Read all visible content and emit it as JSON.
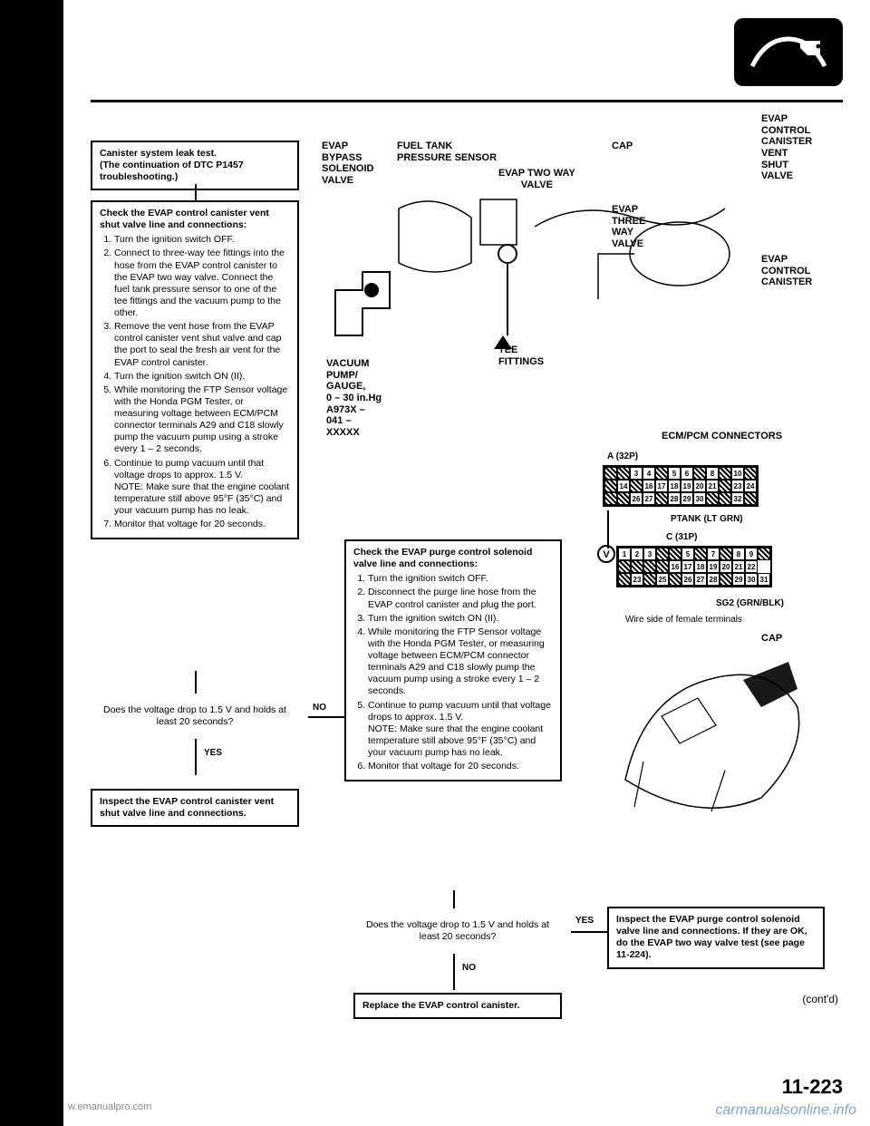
{
  "page": {
    "number": "11-223",
    "contd": "(cont'd)",
    "watermark_left": "w.emanualpro.com",
    "watermark_right": "carmanualsonline.info"
  },
  "boxes": {
    "start": {
      "lines": [
        "Canister system leak test.",
        "(The continuation of DTC P1457 troubleshooting.)"
      ]
    },
    "check_vent": {
      "head": "Check the EVAP control canister vent shut valve line and connections:",
      "items": [
        "Turn the ignition switch OFF.",
        "Connect to three-way tee fittings into the hose from the EVAP control canister to the EVAP two way valve. Connect the fuel tank pressure sensor to one of the tee fittings and the vacuum pump to the other.",
        "Remove the vent hose from the EVAP control canister vent shut valve and cap the port to seal the fresh air vent for the EVAP control canister.",
        "Turn the ignition switch ON (II).",
        "While monitoring the FTP Sensor voltage with the Honda PGM Tester, or measuring voltage between ECM/PCM connector terminals A29 and C18 slowly pump the vacuum pump using a stroke every 1 – 2 seconds.",
        "Continue to pump vacuum until that voltage drops to approx. 1.5 V.\nNOTE: Make sure that the engine coolant temperature still above 95°F (35°C) and your vacuum pump has no leak.",
        "Monitor that voltage for 20 seconds."
      ]
    },
    "check_purge": {
      "head": "Check the EVAP purge control solenoid valve line and connections:",
      "items": [
        "Turn the ignition switch OFF.",
        "Disconnect the purge line hose from the EVAP control canister and plug the port.",
        "Turn the ignition switch ON (II).",
        "While monitoring the FTP Sensor voltage with the Honda PGM Tester, or measuring voltage between ECM/PCM connector terminals A29 and C18 slowly pump the vacuum pump using a stroke every 1 – 2 seconds.",
        "Continue to pump vacuum until that voltage drops to approx. 1.5 V.\nNOTE: Make sure that the engine coolant temperature still above 95°F (35°C) and your vacuum pump has no leak.",
        "Monitor that voltage for 20 seconds."
      ]
    },
    "decision1": "Does the voltage drop to 1.5 V and holds at least 20 seconds?",
    "decision2": "Does the voltage drop to 1.5 V and holds at least 20 seconds?",
    "inspect_vent": "Inspect the EVAP control canister vent shut valve line and connections.",
    "inspect_purge": "Inspect the EVAP purge control solenoid valve line and connections. If they are OK, do the EVAP two way valve test (see page 11-224).",
    "replace": "Replace the EVAP control canister."
  },
  "labels": {
    "yes": "YES",
    "no": "NO"
  },
  "diagram1": {
    "evap_bypass": "EVAP\nBYPASS\nSOLENOID\nVALVE",
    "fuel_tank": "FUEL TANK\nPRESSURE SENSOR",
    "evap_two_way": "EVAP TWO WAY\nVALVE",
    "cap": "CAP",
    "evap_ccv": "EVAP\nCONTROL\nCANISTER\nVENT\nSHUT\nVALVE",
    "evap_three_way": "EVAP\nTHREE\nWAY\nVALVE",
    "evap_cc": "EVAP\nCONTROL\nCANISTER",
    "tee": "TEE\nFITTINGS",
    "vacuum": "VACUUM\nPUMP/\nGAUGE,\n0 – 30 in.Hg\nA973X –\n041 –\nXXXXX"
  },
  "connectors": {
    "title": "ECM/PCM CONNECTORS",
    "a": "A (32P)",
    "c": "C (31P)",
    "ptank": "PTANK (LT GRN)",
    "sg2": "SG2 (GRN/BLK)",
    "wire_side": "Wire side of female terminals",
    "cap2": "CAP",
    "a_row1": [
      "",
      "",
      "3",
      "4",
      "",
      "5",
      "6",
      "",
      "8",
      "",
      "10",
      ""
    ],
    "a_row2": [
      "",
      "14",
      "",
      "16",
      "17",
      "18",
      "19",
      "20",
      "21",
      "",
      "23",
      "24"
    ],
    "a_row3": [
      "",
      "",
      "26",
      "27",
      "",
      "28",
      "29",
      "30",
      "",
      "",
      "32",
      ""
    ],
    "c_row1": [
      "1",
      "2",
      "3",
      "",
      "",
      "5",
      "",
      "7",
      "",
      "8",
      "9",
      ""
    ],
    "c_row2": [
      "",
      "",
      "",
      "",
      "16",
      "17",
      "18",
      "19",
      "20",
      "21",
      "22"
    ],
    "c_row3": [
      "",
      "23",
      "",
      "25",
      "",
      "26",
      "27",
      "28",
      "",
      "29",
      "30",
      "31"
    ]
  },
  "colors": {
    "text": "#000000",
    "bg": "#ffffff",
    "border": "#000000"
  }
}
